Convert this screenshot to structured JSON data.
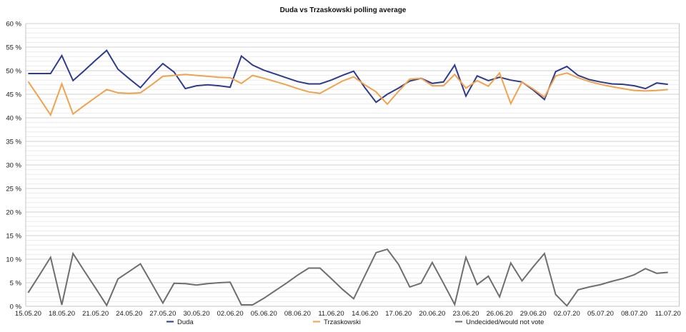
{
  "chart_data": {
    "type": "line",
    "title": "Duda vs Trzaskowski polling average",
    "ylim": [
      0,
      60
    ],
    "y_tick_step": 5,
    "y_minor_step": 1,
    "y_tick_suffix": " %",
    "grid": "horizontal minor 1% light, major 5% darker",
    "legend_position": "bottom-center",
    "x": [
      "15.05.20",
      "16.05.20",
      "17.05.20",
      "18.05.20",
      "19.05.20",
      "20.05.20",
      "21.05.20",
      "22.05.20",
      "23.05.20",
      "24.05.20",
      "25.05.20",
      "26.05.20",
      "27.05.20",
      "28.05.20",
      "29.05.20",
      "30.05.20",
      "31.05.20",
      "01.06.20",
      "02.06.20",
      "03.06.20",
      "04.06.20",
      "05.06.20",
      "06.06.20",
      "07.06.20",
      "08.06.20",
      "09.06.20",
      "10.06.20",
      "11.06.20",
      "12.06.20",
      "13.06.20",
      "14.06.20",
      "15.06.20",
      "16.06.20",
      "17.06.20",
      "18.06.20",
      "19.06.20",
      "20.06.20",
      "21.06.20",
      "22.06.20",
      "23.06.20",
      "24.06.20",
      "25.06.20",
      "26.06.20",
      "27.06.20",
      "28.06.20",
      "29.06.20",
      "30.06.20",
      "01.07.20",
      "02.07.20",
      "03.07.20",
      "04.07.20",
      "05.07.20",
      "06.07.20",
      "07.07.20",
      "08.07.20",
      "09.07.20",
      "10.07.20",
      "11.07.20"
    ],
    "x_tick_labels": [
      "15.05.20",
      "18.05.20",
      "21.05.20",
      "24.05.20",
      "27.05.20",
      "30.05.20",
      "02.06.20",
      "05.06.20",
      "08.06.20",
      "11.06.20",
      "14.06.20",
      "17.06.20",
      "20.06.20",
      "23.06.20",
      "26.06.20",
      "29.06.20",
      "02.07.20",
      "05.07.20",
      "08.07.20",
      "11.07.20"
    ],
    "x_tick_every": 3,
    "series": [
      {
        "name": "Duda",
        "color": "#2f3b8f",
        "values": [
          49.4,
          49.4,
          49.4,
          53.2,
          47.9,
          50.0,
          52.2,
          54.3,
          50.3,
          48.3,
          46.4,
          49.1,
          51.5,
          49.7,
          46.2,
          46.8,
          47.0,
          46.8,
          46.5,
          53.1,
          51.2,
          50.1,
          49.3,
          48.5,
          47.7,
          47.2,
          47.2,
          48.0,
          49.0,
          49.9,
          46.4,
          43.3,
          45.0,
          46.3,
          47.8,
          48.4,
          47.3,
          47.6,
          51.2,
          44.6,
          48.9,
          47.9,
          48.6,
          48.0,
          47.6,
          45.9,
          43.9,
          49.8,
          50.9,
          49.0,
          48.1,
          47.6,
          47.2,
          47.1,
          46.8,
          46.2,
          47.4,
          47.1
        ]
      },
      {
        "name": "Trzaskowski",
        "color": "#f2a24c",
        "values": [
          47.7,
          44.2,
          40.6,
          47.2,
          40.8,
          42.6,
          44.3,
          46.0,
          45.3,
          45.2,
          45.3,
          47.0,
          48.8,
          49.0,
          49.2,
          49.0,
          48.8,
          48.6,
          48.5,
          47.3,
          49.0,
          48.4,
          47.7,
          47.0,
          46.2,
          45.5,
          45.2,
          46.5,
          47.8,
          48.7,
          47.0,
          45.5,
          42.9,
          45.6,
          48.2,
          48.4,
          46.8,
          46.8,
          49.2,
          46.3,
          47.9,
          46.7,
          49.5,
          43.0,
          47.6,
          46.1,
          44.4,
          48.9,
          49.5,
          48.5,
          47.7,
          47.1,
          46.6,
          46.2,
          45.8,
          45.7,
          45.8,
          46.0
        ]
      },
      {
        "name": "Undecided/would not vote",
        "color": "#6e6e6e",
        "values": [
          2.9,
          6.6,
          10.4,
          0.3,
          11.2,
          7.5,
          3.9,
          0.2,
          5.8,
          7.4,
          9.0,
          4.9,
          0.7,
          4.9,
          4.8,
          4.5,
          4.8,
          5.0,
          5.1,
          0.3,
          0.3,
          1.7,
          3.3,
          4.9,
          6.6,
          8.1,
          8.1,
          5.9,
          3.6,
          1.6,
          6.5,
          11.4,
          12.1,
          8.9,
          4.1,
          4.9,
          9.3,
          4.9,
          0.4,
          10.4,
          4.6,
          6.4,
          2.0,
          9.2,
          5.4,
          8.4,
          11.2,
          2.5,
          0.1,
          3.5,
          4.1,
          4.6,
          5.3,
          5.9,
          6.7,
          8.0,
          7.0,
          7.2
        ]
      }
    ],
    "colors": {
      "grid_minor": "#ececec",
      "grid_major": "#d2d2d2",
      "axis_line": "#c4c4c4",
      "background": "#ffffff"
    }
  }
}
